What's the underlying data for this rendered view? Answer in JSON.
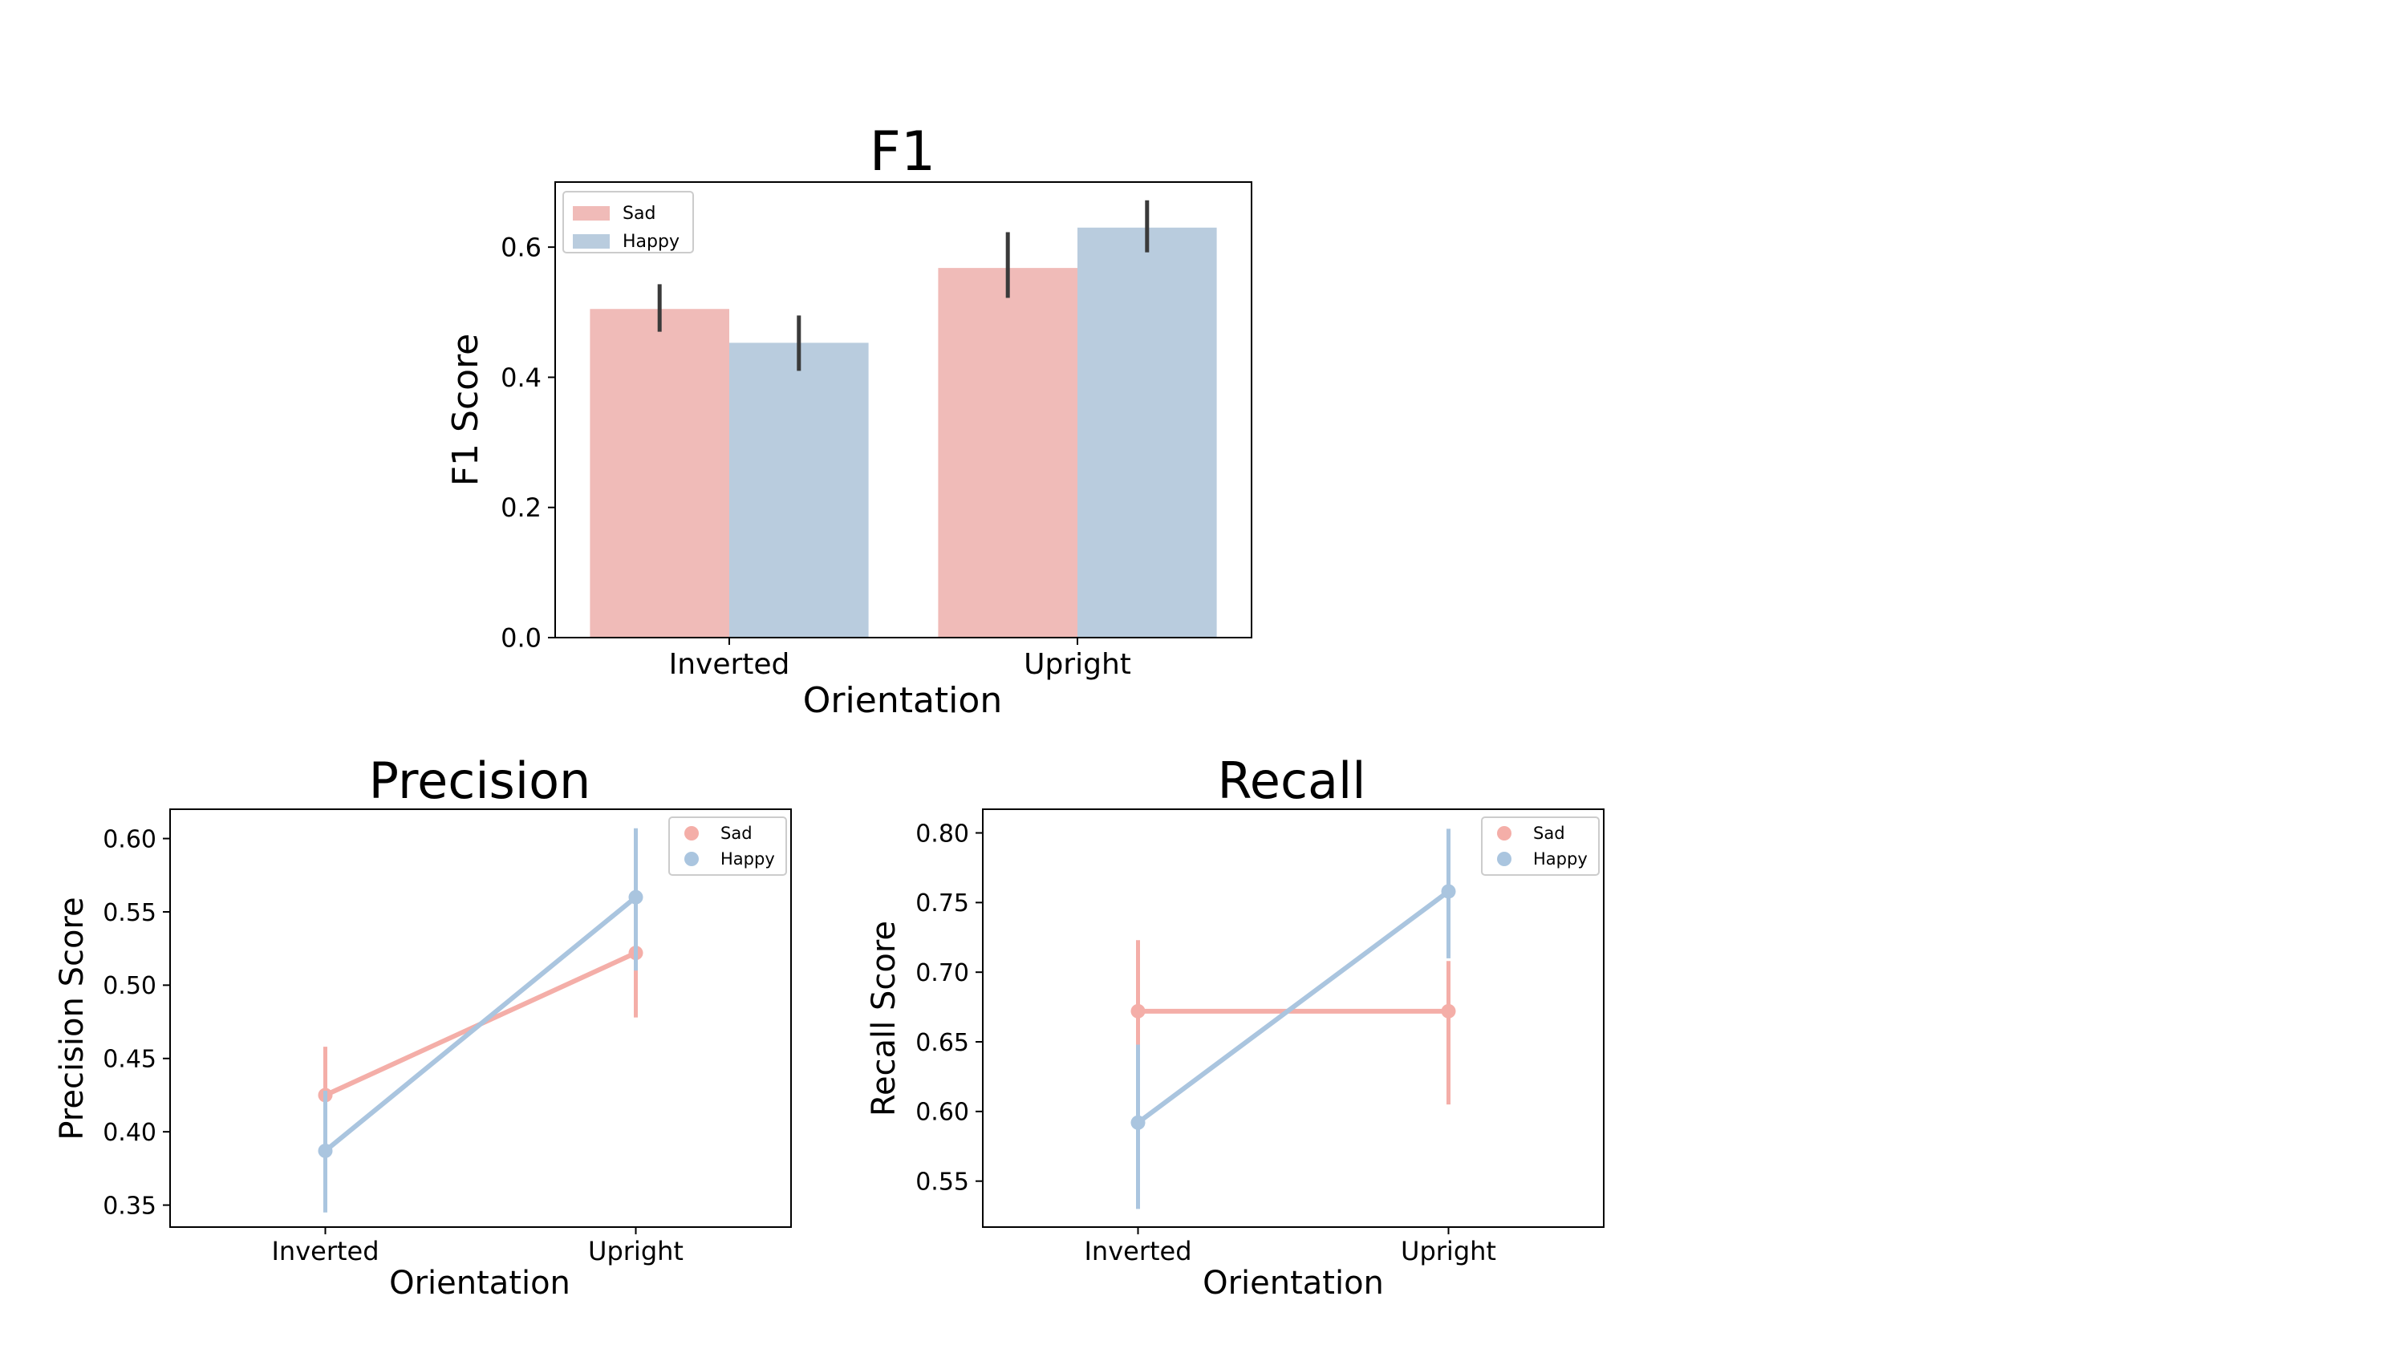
{
  "colors": {
    "sad": "#f0bbb8",
    "happy": "#b9ccde",
    "sad_point": "#f4aea8",
    "happy_point": "#aac5df",
    "errbar": "#3a3a3a",
    "axis": "#000000"
  },
  "chart_data": [
    {
      "id": "f1",
      "type": "bar",
      "title": "F1",
      "xlabel": "Orientation",
      "ylabel": "F1 Score",
      "categories": [
        "Inverted",
        "Upright"
      ],
      "ylim": [
        0,
        0.7
      ],
      "yticks": [
        0.0,
        0.2,
        0.4,
        0.6
      ],
      "ytick_labels": [
        "0.0",
        "0.2",
        "0.4",
        "0.6"
      ],
      "series": [
        {
          "name": "Sad",
          "color": "#f0bbb8",
          "values": [
            0.505,
            0.568
          ],
          "ci": [
            [
              0.47,
              0.543
            ],
            [
              0.522,
              0.623
            ]
          ]
        },
        {
          "name": "Happy",
          "color": "#b9ccde",
          "values": [
            0.453,
            0.63
          ],
          "ci": [
            [
              0.41,
              0.495
            ],
            [
              0.592,
              0.672
            ]
          ]
        }
      ],
      "legend": "top-left",
      "grid": false
    },
    {
      "id": "precision",
      "type": "line",
      "title": "Precision",
      "xlabel": "Orientation",
      "ylabel": "Precision Score",
      "categories": [
        "Inverted",
        "Upright"
      ],
      "ylim": [
        0.335,
        0.62
      ],
      "yticks": [
        0.35,
        0.4,
        0.45,
        0.5,
        0.55,
        0.6
      ],
      "ytick_labels": [
        "0.35",
        "0.40",
        "0.45",
        "0.50",
        "0.55",
        "0.60"
      ],
      "series": [
        {
          "name": "Sad",
          "color": "#f4aea8",
          "values": [
            0.425,
            0.522
          ],
          "ci": [
            [
              0.39,
              0.458
            ],
            [
              0.478,
              0.567
            ]
          ]
        },
        {
          "name": "Happy",
          "color": "#aac5df",
          "values": [
            0.387,
            0.56
          ],
          "ci": [
            [
              0.345,
              0.428
            ],
            [
              0.51,
              0.607
            ]
          ]
        }
      ],
      "legend": "top-right",
      "grid": false
    },
    {
      "id": "recall",
      "type": "line",
      "title": "Recall",
      "xlabel": "Orientation",
      "ylabel": "Recall Score",
      "categories": [
        "Inverted",
        "Upright"
      ],
      "ylim": [
        0.517,
        0.817
      ],
      "yticks": [
        0.55,
        0.6,
        0.65,
        0.7,
        0.75,
        0.8
      ],
      "ytick_labels": [
        "0.55",
        "0.60",
        "0.65",
        "0.70",
        "0.75",
        "0.80"
      ],
      "series": [
        {
          "name": "Sad",
          "color": "#f4aea8",
          "values": [
            0.672,
            0.672
          ],
          "ci": [
            [
              0.625,
              0.723
            ],
            [
              0.605,
              0.708
            ]
          ]
        },
        {
          "name": "Happy",
          "color": "#aac5df",
          "values": [
            0.592,
            0.758
          ],
          "ci": [
            [
              0.53,
              0.648
            ],
            [
              0.71,
              0.803
            ]
          ]
        }
      ],
      "legend": "top-right",
      "grid": false
    }
  ]
}
